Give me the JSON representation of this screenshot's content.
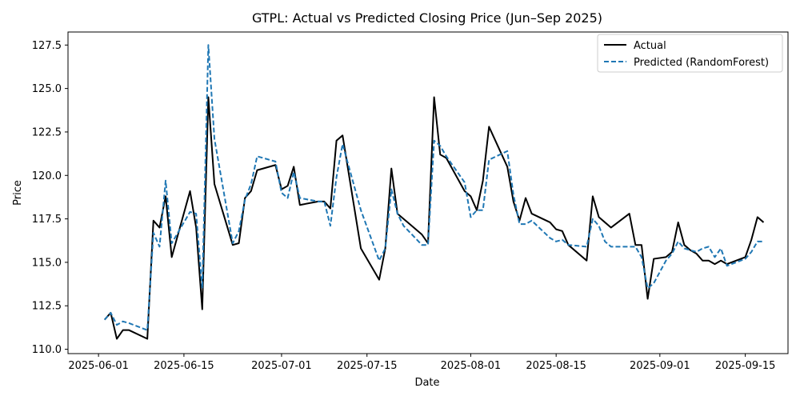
{
  "chart_data": {
    "type": "line",
    "title": "GTPL: Actual vs Predicted Closing Price (Jun–Sep 2025)",
    "xlabel": "Date",
    "ylabel": "Price",
    "xlim": [
      "2025-05-27",
      "2025-09-22"
    ],
    "ylim": [
      109.75,
      128.25
    ],
    "x_ticks": [
      "2025-06-01",
      "2025-06-15",
      "2025-07-01",
      "2025-07-15",
      "2025-08-01",
      "2025-08-15",
      "2025-09-01",
      "2025-09-15"
    ],
    "y_ticks": [
      110.0,
      112.5,
      115.0,
      117.5,
      120.0,
      122.5,
      125.0,
      127.5
    ],
    "y_tick_labels": [
      "110.0",
      "112.5",
      "115.0",
      "117.5",
      "120.0",
      "122.5",
      "125.0",
      "127.5"
    ],
    "grid": false,
    "legend_position": "top-right",
    "series": [
      {
        "name": "Actual",
        "color": "#000000",
        "style": "solid",
        "points": [
          [
            "2025-06-02",
            111.7
          ],
          [
            "2025-06-03",
            112.1
          ],
          [
            "2025-06-04",
            110.6
          ],
          [
            "2025-06-05",
            111.1
          ],
          [
            "2025-06-06",
            111.1
          ],
          [
            "2025-06-09",
            110.6
          ],
          [
            "2025-06-10",
            117.4
          ],
          [
            "2025-06-11",
            117.0
          ],
          [
            "2025-06-12",
            118.8
          ],
          [
            "2025-06-13",
            115.3
          ],
          [
            "2025-06-16",
            119.1
          ],
          [
            "2025-06-17",
            117.0
          ],
          [
            "2025-06-18",
            112.3
          ],
          [
            "2025-06-19",
            124.5
          ],
          [
            "2025-06-20",
            119.5
          ],
          [
            "2025-06-23",
            116.0
          ],
          [
            "2025-06-24",
            116.1
          ],
          [
            "2025-06-25",
            118.7
          ],
          [
            "2025-06-26",
            119.1
          ],
          [
            "2025-06-27",
            120.3
          ],
          [
            "2025-06-30",
            120.6
          ],
          [
            "2025-07-01",
            119.2
          ],
          [
            "2025-07-02",
            119.4
          ],
          [
            "2025-07-03",
            120.5
          ],
          [
            "2025-07-04",
            118.3
          ],
          [
            "2025-07-07",
            118.5
          ],
          [
            "2025-07-08",
            118.5
          ],
          [
            "2025-07-09",
            118.1
          ],
          [
            "2025-07-10",
            122.0
          ],
          [
            "2025-07-11",
            122.3
          ],
          [
            "2025-07-14",
            115.8
          ],
          [
            "2025-07-17",
            114.0
          ],
          [
            "2025-07-18",
            115.8
          ],
          [
            "2025-07-19",
            120.4
          ],
          [
            "2025-07-20",
            117.8
          ],
          [
            "2025-07-21",
            117.5
          ],
          [
            "2025-07-24",
            116.6
          ],
          [
            "2025-07-25",
            116.1
          ],
          [
            "2025-07-26",
            124.5
          ],
          [
            "2025-07-27",
            121.2
          ],
          [
            "2025-07-28",
            121.0
          ],
          [
            "2025-07-31",
            119.1
          ],
          [
            "2025-08-01",
            118.8
          ],
          [
            "2025-08-02",
            118.0
          ],
          [
            "2025-08-03",
            119.7
          ],
          [
            "2025-08-04",
            122.8
          ],
          [
            "2025-08-07",
            120.5
          ],
          [
            "2025-08-08",
            118.5
          ],
          [
            "2025-08-09",
            117.4
          ],
          [
            "2025-08-10",
            118.7
          ],
          [
            "2025-08-11",
            117.8
          ],
          [
            "2025-08-14",
            117.3
          ],
          [
            "2025-08-15",
            116.9
          ],
          [
            "2025-08-16",
            116.8
          ],
          [
            "2025-08-17",
            116.0
          ],
          [
            "2025-08-20",
            115.1
          ],
          [
            "2025-08-21",
            118.8
          ],
          [
            "2025-08-22",
            117.6
          ],
          [
            "2025-08-23",
            117.3
          ],
          [
            "2025-08-24",
            117.0
          ],
          [
            "2025-08-27",
            117.8
          ],
          [
            "2025-08-28",
            116.0
          ],
          [
            "2025-08-29",
            116.0
          ],
          [
            "2025-08-30",
            112.9
          ],
          [
            "2025-08-31",
            115.2
          ],
          [
            "2025-09-02",
            115.3
          ],
          [
            "2025-09-03",
            115.6
          ],
          [
            "2025-09-04",
            117.3
          ],
          [
            "2025-09-05",
            116.0
          ],
          [
            "2025-09-06",
            115.7
          ],
          [
            "2025-09-07",
            115.5
          ],
          [
            "2025-09-08",
            115.1
          ],
          [
            "2025-09-09",
            115.1
          ],
          [
            "2025-09-10",
            114.9
          ],
          [
            "2025-09-11",
            115.1
          ],
          [
            "2025-09-12",
            114.9
          ],
          [
            "2025-09-15",
            115.3
          ],
          [
            "2025-09-16",
            116.3
          ],
          [
            "2025-09-17",
            117.6
          ],
          [
            "2025-09-18",
            117.3
          ]
        ]
      },
      {
        "name": "Predicted (RandomForest)",
        "color": "#1f77b4",
        "style": "dashed",
        "points": [
          [
            "2025-06-02",
            111.7
          ],
          [
            "2025-06-03",
            112.1
          ],
          [
            "2025-06-04",
            111.4
          ],
          [
            "2025-06-05",
            111.6
          ],
          [
            "2025-06-06",
            111.5
          ],
          [
            "2025-06-09",
            111.1
          ],
          [
            "2025-06-10",
            116.7
          ],
          [
            "2025-06-11",
            115.9
          ],
          [
            "2025-06-12",
            119.7
          ],
          [
            "2025-06-13",
            116.1
          ],
          [
            "2025-06-16",
            117.9
          ],
          [
            "2025-06-17",
            117.8
          ],
          [
            "2025-06-18",
            113.5
          ],
          [
            "2025-06-19",
            127.5
          ],
          [
            "2025-06-20",
            122.1
          ],
          [
            "2025-06-23",
            116.1
          ],
          [
            "2025-06-24",
            116.8
          ],
          [
            "2025-06-25",
            118.6
          ],
          [
            "2025-06-26",
            119.5
          ],
          [
            "2025-06-27",
            121.1
          ],
          [
            "2025-06-30",
            120.8
          ],
          [
            "2025-07-01",
            119.0
          ],
          [
            "2025-07-02",
            118.7
          ],
          [
            "2025-07-03",
            120.2
          ],
          [
            "2025-07-04",
            118.7
          ],
          [
            "2025-07-07",
            118.5
          ],
          [
            "2025-07-08",
            118.5
          ],
          [
            "2025-07-09",
            117.1
          ],
          [
            "2025-07-10",
            119.9
          ],
          [
            "2025-07-11",
            121.8
          ],
          [
            "2025-07-14",
            118.0
          ],
          [
            "2025-07-17",
            115.1
          ],
          [
            "2025-07-18",
            115.8
          ],
          [
            "2025-07-19",
            119.2
          ],
          [
            "2025-07-20",
            117.8
          ],
          [
            "2025-07-21",
            117.1
          ],
          [
            "2025-07-24",
            116.0
          ],
          [
            "2025-07-25",
            116.0
          ],
          [
            "2025-07-26",
            122.0
          ],
          [
            "2025-07-27",
            121.7
          ],
          [
            "2025-07-28",
            121.1
          ],
          [
            "2025-07-31",
            119.6
          ],
          [
            "2025-08-01",
            117.6
          ],
          [
            "2025-08-02",
            118.0
          ],
          [
            "2025-08-03",
            118.0
          ],
          [
            "2025-08-04",
            120.9
          ],
          [
            "2025-08-07",
            121.4
          ],
          [
            "2025-08-08",
            118.9
          ],
          [
            "2025-08-09",
            117.2
          ],
          [
            "2025-08-10",
            117.2
          ],
          [
            "2025-08-11",
            117.4
          ],
          [
            "2025-08-14",
            116.4
          ],
          [
            "2025-08-15",
            116.2
          ],
          [
            "2025-08-16",
            116.3
          ],
          [
            "2025-08-17",
            116.0
          ],
          [
            "2025-08-20",
            115.9
          ],
          [
            "2025-08-21",
            117.5
          ],
          [
            "2025-08-22",
            117.1
          ],
          [
            "2025-08-23",
            116.2
          ],
          [
            "2025-08-24",
            115.9
          ],
          [
            "2025-08-27",
            115.9
          ],
          [
            "2025-08-28",
            115.9
          ],
          [
            "2025-08-29",
            115.3
          ],
          [
            "2025-08-30",
            113.5
          ],
          [
            "2025-08-31",
            113.8
          ],
          [
            "2025-09-02",
            115.1
          ],
          [
            "2025-09-03",
            115.5
          ],
          [
            "2025-09-04",
            116.2
          ],
          [
            "2025-09-05",
            115.8
          ],
          [
            "2025-09-06",
            115.7
          ],
          [
            "2025-09-07",
            115.6
          ],
          [
            "2025-09-08",
            115.8
          ],
          [
            "2025-09-09",
            115.9
          ],
          [
            "2025-09-10",
            115.3
          ],
          [
            "2025-09-11",
            115.8
          ],
          [
            "2025-09-12",
            114.8
          ],
          [
            "2025-09-15",
            115.2
          ],
          [
            "2025-09-16",
            115.6
          ],
          [
            "2025-09-17",
            116.2
          ],
          [
            "2025-09-18",
            116.2
          ]
        ]
      }
    ]
  }
}
